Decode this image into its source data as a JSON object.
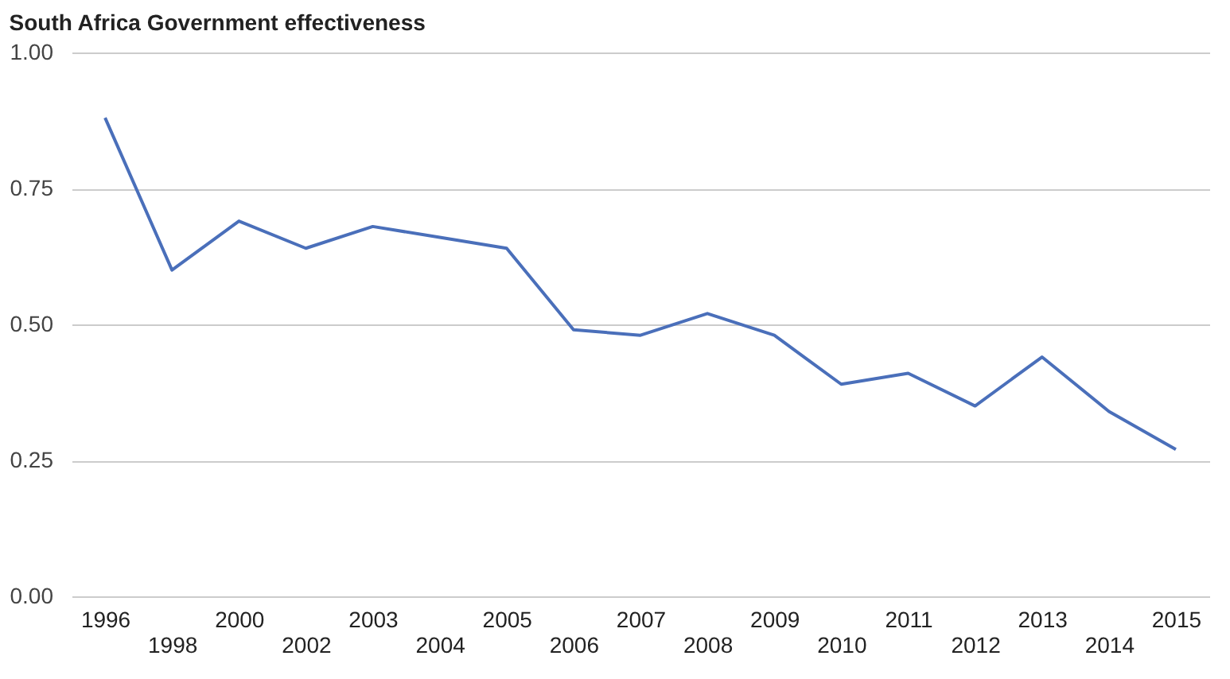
{
  "chart_data": {
    "type": "line",
    "title": "South Africa Government effectiveness",
    "categories": [
      "1996",
      "1998",
      "2000",
      "2002",
      "2003",
      "2004",
      "2005",
      "2006",
      "2007",
      "2008",
      "2009",
      "2010",
      "2011",
      "2012",
      "2013",
      "2014",
      "2015"
    ],
    "series": [
      {
        "color": "#4a6fba",
        "values": [
          0.88,
          0.6,
          0.69,
          0.64,
          0.68,
          0.66,
          0.64,
          0.49,
          0.48,
          0.52,
          0.48,
          0.39,
          0.41,
          0.35,
          0.44,
          0.34,
          0.27
        ]
      }
    ],
    "ylim": [
      0,
      1
    ],
    "yticks": [
      {
        "value": 0,
        "label": "0.00"
      },
      {
        "value": 0.25,
        "label": "0.25"
      },
      {
        "value": 0.5,
        "label": "0.50"
      },
      {
        "value": 0.75,
        "label": "0.75"
      },
      {
        "value": 1,
        "label": "1.00"
      }
    ],
    "grid": "y",
    "marker": "none",
    "line_style": "solid"
  }
}
